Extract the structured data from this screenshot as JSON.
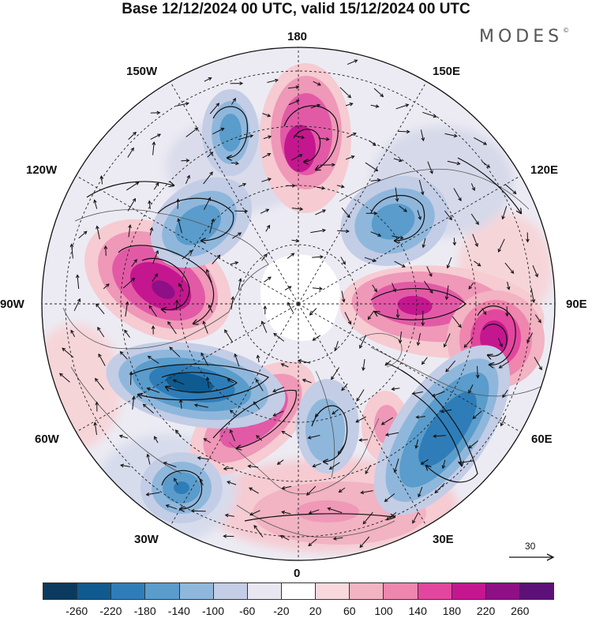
{
  "title": "Base 12/12/2024 00 UTC, valid 15/12/2024 00 UTC",
  "brand": "MODES",
  "brand_mark": "©",
  "lon_labels": {
    "top": "180",
    "nw_upper": "150W",
    "ne_upper": "150E",
    "nw_lower": "120W",
    "ne_lower": "120E",
    "west": "90W",
    "east": "90E",
    "sw_upper": "60W",
    "se_upper": "60E",
    "sw_lower": "30W",
    "se_lower": "30E",
    "bottom": "0"
  },
  "reference_vector_label": "30",
  "colorbar": {
    "colors": [
      "#0b3a5e",
      "#0f5b8f",
      "#2f7db8",
      "#5a9ccb",
      "#8fb7dc",
      "#c3cde6",
      "#e8e6f1",
      "#ffffff",
      "#f8d8dc",
      "#f2b3c2",
      "#ef86ae",
      "#e2469e",
      "#c4178f",
      "#8f0f87",
      "#5e1079"
    ],
    "ticks": [
      "-260",
      "-220",
      "-180",
      "-140",
      "-100",
      "-60",
      "-20",
      "20",
      "60",
      "100",
      "140",
      "180",
      "220",
      "260"
    ]
  },
  "anomaly_centers": [
    {
      "sign": "positive",
      "strength": 3
    },
    {
      "sign": "positive",
      "strength": 3
    },
    {
      "sign": "positive",
      "strength": 2
    },
    {
      "sign": "positive",
      "strength": 3
    },
    {
      "sign": "positive",
      "strength": 3
    },
    {
      "sign": "positive",
      "strength": 1
    },
    {
      "sign": "positive",
      "strength": 1
    },
    {
      "sign": "negative",
      "strength": 3
    },
    {
      "sign": "negative",
      "strength": 2
    },
    {
      "sign": "negative",
      "strength": 2
    },
    {
      "sign": "negative",
      "strength": 3
    },
    {
      "sign": "negative",
      "strength": 2
    },
    {
      "sign": "negative",
      "strength": 1
    }
  ]
}
